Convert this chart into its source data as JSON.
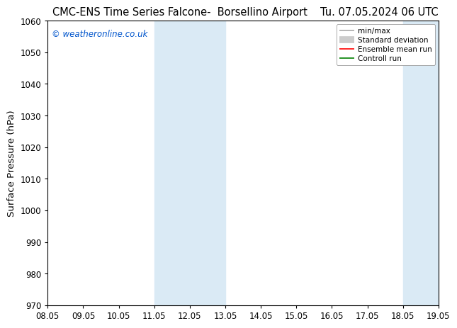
{
  "title_left": "CMC-ENS Time Series Falcone-  Borsellino Airport",
  "title_right": "Tu. 07.05.2024 06 UTC",
  "ylabel": "Surface Pressure (hPa)",
  "ylim": [
    970,
    1060
  ],
  "yticks": [
    970,
    980,
    990,
    1000,
    1010,
    1020,
    1030,
    1040,
    1050,
    1060
  ],
  "xtick_labels": [
    "08.05",
    "09.05",
    "10.05",
    "11.05",
    "12.05",
    "13.05",
    "14.05",
    "15.05",
    "16.05",
    "17.05",
    "18.05",
    "19.05"
  ],
  "xtick_positions": [
    0,
    1,
    2,
    3,
    4,
    5,
    6,
    7,
    8,
    9,
    10,
    11
  ],
  "xlim": [
    0,
    11
  ],
  "shaded_regions": [
    {
      "xstart": 3,
      "xend": 5,
      "color": "#daeaf5"
    },
    {
      "xstart": 10,
      "xend": 11,
      "color": "#daeaf5"
    }
  ],
  "watermark_text": "© weatheronline.co.uk",
  "watermark_color": "#0055cc",
  "legend_entries": [
    {
      "label": "min/max",
      "color": "#aaaaaa",
      "linestyle": "-",
      "linewidth": 1.2
    },
    {
      "label": "Standard deviation",
      "color": "#cccccc",
      "linestyle": "-",
      "linewidth": 7
    },
    {
      "label": "Ensemble mean run",
      "color": "#ff0000",
      "linestyle": "-",
      "linewidth": 1.2
    },
    {
      "label": "Controll run",
      "color": "#008000",
      "linestyle": "-",
      "linewidth": 1.2
    }
  ],
  "bg_color": "#ffffff",
  "plot_bg_color": "#ffffff",
  "spine_color": "#000000",
  "tick_color": "#000000",
  "title_fontsize": 10.5,
  "label_fontsize": 9.5,
  "tick_fontsize": 8.5,
  "watermark_fontsize": 8.5,
  "legend_fontsize": 7.5
}
